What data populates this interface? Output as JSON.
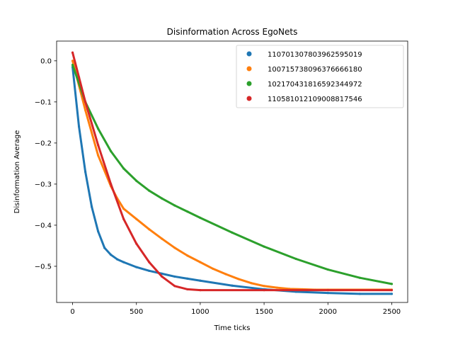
{
  "chart_data": {
    "type": "scatter",
    "title": "Disinformation Across EgoNets",
    "xlabel": "Time ticks",
    "ylabel": "Disinformation Average",
    "xlim": [
      -125,
      2625
    ],
    "ylim": [
      -0.588,
      0.048
    ],
    "xticks": [
      0,
      500,
      1000,
      1500,
      2000,
      2500
    ],
    "xtick_labels": [
      "0",
      "500",
      "1000",
      "1500",
      "2000",
      "2500"
    ],
    "yticks": [
      0.0,
      -0.1,
      -0.2,
      -0.3,
      -0.4,
      -0.5
    ],
    "ytick_labels": [
      "0.0",
      "−0.1",
      "−0.2",
      "−0.3",
      "−0.4",
      "−0.5"
    ],
    "grid": false,
    "legend_position": "top-right",
    "series": [
      {
        "name": "1107013078039625950​19",
        "color": "#1f77b4",
        "x": [
          0,
          50,
          100,
          150,
          200,
          250,
          300,
          350,
          400,
          500,
          600,
          700,
          800,
          900,
          1000,
          1250,
          1500,
          1750,
          2000,
          2250,
          2500
        ],
        "y": [
          -0.015,
          -0.16,
          -0.27,
          -0.355,
          -0.415,
          -0.455,
          -0.472,
          -0.483,
          -0.49,
          -0.502,
          -0.511,
          -0.518,
          -0.525,
          -0.53,
          -0.535,
          -0.547,
          -0.556,
          -0.562,
          -0.565,
          -0.567,
          -0.567
        ]
      },
      {
        "name": "1007157380963766661​80",
        "color": "#ff7f0e",
        "x": [
          0,
          100,
          200,
          300,
          350,
          400,
          500,
          600,
          700,
          800,
          900,
          1000,
          1100,
          1200,
          1300,
          1400,
          1500,
          1600,
          1700,
          1800,
          1900,
          2000,
          2500
        ],
        "y": [
          0.0,
          -0.12,
          -0.23,
          -0.305,
          -0.335,
          -0.36,
          -0.385,
          -0.41,
          -0.433,
          -0.455,
          -0.474,
          -0.49,
          -0.506,
          -0.519,
          -0.531,
          -0.541,
          -0.548,
          -0.552,
          -0.555,
          -0.556,
          -0.557,
          -0.557,
          -0.557
        ]
      },
      {
        "name": "1021704318165923449​72",
        "color": "#2ca02c",
        "x": [
          0,
          100,
          200,
          300,
          400,
          500,
          600,
          700,
          800,
          900,
          1000,
          1250,
          1500,
          1750,
          2000,
          2250,
          2500
        ],
        "y": [
          -0.01,
          -0.1,
          -0.165,
          -0.22,
          -0.262,
          -0.292,
          -0.316,
          -0.335,
          -0.352,
          -0.367,
          -0.382,
          -0.418,
          -0.452,
          -0.482,
          -0.508,
          -0.528,
          -0.543
        ]
      },
      {
        "name": "1105810121090088175​46",
        "color": "#d62728",
        "x": [
          0,
          50,
          100,
          200,
          300,
          400,
          500,
          600,
          700,
          800,
          900,
          1000,
          1500,
          2000,
          2500
        ],
        "y": [
          0.02,
          -0.04,
          -0.1,
          -0.205,
          -0.3,
          -0.385,
          -0.445,
          -0.49,
          -0.525,
          -0.548,
          -0.556,
          -0.558,
          -0.558,
          -0.558,
          -0.558
        ]
      }
    ]
  }
}
